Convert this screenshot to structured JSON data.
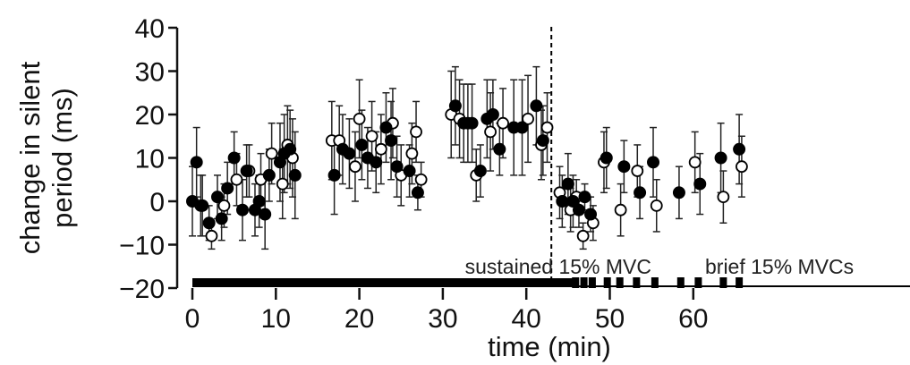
{
  "chart_data": {
    "type": "scatter",
    "xlabel": "time (min)",
    "ylabel_lines": [
      "change in silent",
      "period (ms)"
    ],
    "xlim": [
      0,
      66
    ],
    "ylim": [
      -20,
      40
    ],
    "x_ticks": [
      0,
      10,
      20,
      30,
      40,
      50,
      60
    ],
    "y_ticks": [
      40,
      30,
      20,
      10,
      0,
      -10,
      -20
    ],
    "divider_x": 43,
    "phase_labels": {
      "sustained": "sustained 15% MVC",
      "brief": "brief 15% MVCs"
    },
    "sustained_bar": [
      0,
      45.5
    ],
    "brief_pulses": [
      45.9,
      46.9,
      47.9,
      49.7,
      51.2,
      53.2,
      55.4,
      58.5,
      60.6,
      63.6,
      65.5
    ],
    "series": [
      {
        "marker": "filled",
        "points": [
          {
            "x": 0.0,
            "y": 0,
            "err": 8
          },
          {
            "x": 0.5,
            "y": 9,
            "err": 8
          },
          {
            "x": 1.2,
            "y": -1,
            "err": 7
          },
          {
            "x": 2.0,
            "y": -5,
            "err": 4
          },
          {
            "x": 3.0,
            "y": 1,
            "err": 5
          },
          {
            "x": 3.5,
            "y": -4,
            "err": 5
          },
          {
            "x": 4.2,
            "y": 3,
            "err": 6
          },
          {
            "x": 5.0,
            "y": 10,
            "err": 6
          },
          {
            "x": 6.0,
            "y": -2,
            "err": 7
          },
          {
            "x": 6.5,
            "y": 7,
            "err": 6
          },
          {
            "x": 7.5,
            "y": -2,
            "err": 6
          },
          {
            "x": 8.0,
            "y": 0,
            "err": 6
          },
          {
            "x": 8.7,
            "y": -3,
            "err": 8
          },
          {
            "x": 9.2,
            "y": 6,
            "err": 6
          },
          {
            "x": 10.5,
            "y": 9,
            "err": 9
          },
          {
            "x": 11.0,
            "y": 11,
            "err": 9
          },
          {
            "x": 11.7,
            "y": 12,
            "err": 9
          },
          {
            "x": 12.3,
            "y": 6,
            "err": 10
          },
          {
            "x": 17.0,
            "y": 6,
            "err": 9
          },
          {
            "x": 18.0,
            "y": 12,
            "err": 8
          },
          {
            "x": 18.8,
            "y": 11,
            "err": 8
          },
          {
            "x": 20.3,
            "y": 13,
            "err": 8
          },
          {
            "x": 21.0,
            "y": 10,
            "err": 7
          },
          {
            "x": 22.0,
            "y": 9,
            "err": 7
          },
          {
            "x": 23.2,
            "y": 17,
            "err": 8
          },
          {
            "x": 23.8,
            "y": 14,
            "err": 9
          },
          {
            "x": 24.5,
            "y": 8,
            "err": 7
          },
          {
            "x": 26.0,
            "y": 7,
            "err": 6
          },
          {
            "x": 27.0,
            "y": 2,
            "err": 4
          },
          {
            "x": 31.5,
            "y": 22,
            "err": 9
          },
          {
            "x": 32.5,
            "y": 18,
            "err": 9
          },
          {
            "x": 33.5,
            "y": 18,
            "err": 9
          },
          {
            "x": 34.5,
            "y": 7,
            "err": 6
          },
          {
            "x": 35.3,
            "y": 19,
            "err": 9
          },
          {
            "x": 36.0,
            "y": 20,
            "err": 8
          },
          {
            "x": 36.8,
            "y": 12,
            "err": 6
          },
          {
            "x": 38.5,
            "y": 17,
            "err": 11
          },
          {
            "x": 39.5,
            "y": 17,
            "err": 11
          },
          {
            "x": 41.2,
            "y": 22,
            "err": 9
          },
          {
            "x": 42.0,
            "y": 14,
            "err": 8
          },
          {
            "x": 44.3,
            "y": 0,
            "err": 6
          },
          {
            "x": 45.0,
            "y": 4,
            "err": 7
          },
          {
            "x": 45.6,
            "y": 0,
            "err": 6
          },
          {
            "x": 46.3,
            "y": -2,
            "err": 4
          },
          {
            "x": 47.0,
            "y": 1,
            "err": 3
          },
          {
            "x": 47.7,
            "y": -3,
            "err": 4
          },
          {
            "x": 49.6,
            "y": 10,
            "err": 7
          },
          {
            "x": 51.7,
            "y": 8,
            "err": 6
          },
          {
            "x": 53.6,
            "y": 2,
            "err": 6
          },
          {
            "x": 55.2,
            "y": 9,
            "err": 8
          },
          {
            "x": 58.3,
            "y": 2,
            "err": 6
          },
          {
            "x": 60.8,
            "y": 4,
            "err": 7
          },
          {
            "x": 63.3,
            "y": 10,
            "err": 8
          },
          {
            "x": 65.5,
            "y": 12,
            "err": 8
          }
        ]
      },
      {
        "marker": "open",
        "points": [
          {
            "x": 1.0,
            "y": -1,
            "err": 7
          },
          {
            "x": 2.3,
            "y": -8,
            "err": 3
          },
          {
            "x": 3.8,
            "y": -1,
            "err": 5
          },
          {
            "x": 5.3,
            "y": 5,
            "err": 6
          },
          {
            "x": 6.8,
            "y": 7,
            "err": 6
          },
          {
            "x": 8.2,
            "y": 5,
            "err": 6
          },
          {
            "x": 9.5,
            "y": 11,
            "err": 7
          },
          {
            "x": 10.8,
            "y": 4,
            "err": 8
          },
          {
            "x": 11.4,
            "y": 13,
            "err": 9
          },
          {
            "x": 12.0,
            "y": 10,
            "err": 9
          },
          {
            "x": 16.7,
            "y": 14,
            "err": 9
          },
          {
            "x": 17.6,
            "y": 14,
            "err": 8
          },
          {
            "x": 19.5,
            "y": 8,
            "err": 8
          },
          {
            "x": 20.0,
            "y": 19,
            "err": 9
          },
          {
            "x": 21.5,
            "y": 15,
            "err": 8
          },
          {
            "x": 22.6,
            "y": 12,
            "err": 8
          },
          {
            "x": 24.0,
            "y": 18,
            "err": 8
          },
          {
            "x": 25.0,
            "y": 6,
            "err": 7
          },
          {
            "x": 26.3,
            "y": 11,
            "err": 7
          },
          {
            "x": 26.8,
            "y": 16,
            "err": 7
          },
          {
            "x": 27.4,
            "y": 5,
            "err": 4
          },
          {
            "x": 31.0,
            "y": 20,
            "err": 10
          },
          {
            "x": 32.0,
            "y": 19,
            "err": 9
          },
          {
            "x": 33.0,
            "y": 18,
            "err": 9
          },
          {
            "x": 34.0,
            "y": 6,
            "err": 6
          },
          {
            "x": 35.7,
            "y": 16,
            "err": 9
          },
          {
            "x": 37.2,
            "y": 18,
            "err": 8
          },
          {
            "x": 40.2,
            "y": 19,
            "err": 10
          },
          {
            "x": 41.8,
            "y": 13,
            "err": 8
          },
          {
            "x": 42.5,
            "y": 17,
            "err": 8
          },
          {
            "x": 44.0,
            "y": 2,
            "err": 6
          },
          {
            "x": 45.3,
            "y": -2,
            "err": 5
          },
          {
            "x": 46.0,
            "y": 1,
            "err": 4
          },
          {
            "x": 46.8,
            "y": -8,
            "err": 3
          },
          {
            "x": 48.0,
            "y": -5,
            "err": 4
          },
          {
            "x": 49.3,
            "y": 9,
            "err": 7
          },
          {
            "x": 51.3,
            "y": -2,
            "err": 6
          },
          {
            "x": 53.3,
            "y": 7,
            "err": 6
          },
          {
            "x": 55.6,
            "y": -1,
            "err": 6
          },
          {
            "x": 60.2,
            "y": 9,
            "err": 7
          },
          {
            "x": 63.6,
            "y": 1,
            "err": 6
          },
          {
            "x": 65.8,
            "y": 8,
            "err": 7
          }
        ]
      }
    ]
  }
}
